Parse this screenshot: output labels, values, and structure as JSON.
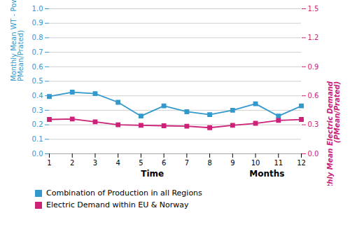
{
  "chart_data": {
    "type": "line",
    "x": [
      1,
      2,
      3,
      4,
      5,
      6,
      7,
      8,
      9,
      10,
      11,
      12
    ],
    "xlim": [
      1,
      12
    ],
    "xticks": [
      1,
      2,
      3,
      4,
      5,
      6,
      7,
      8,
      9,
      10,
      11,
      12
    ],
    "ylabel": "Monthly Mean WT - Power\nPMean/Prated)",
    "y2label": "Monthly Mean Electric Demand\n(PMean/Prated)",
    "ylim": [
      0,
      1
    ],
    "yticks": [
      {
        "value": 0,
        "label": "0.0"
      },
      0.1,
      0.2,
      0.3,
      0.4,
      0.5,
      0.6,
      0.7,
      0.8,
      0.9,
      {
        "value": 1,
        "label": "1.0"
      }
    ],
    "y2lim": [
      0,
      1.5
    ],
    "y2ticks": [
      {
        "value": 0,
        "label": "0.0"
      },
      0.3,
      0.6,
      0.9,
      1.2,
      1.5
    ],
    "series": [
      {
        "name": "Combination of Production in all Regions",
        "color": "#3399cc",
        "marker": "square",
        "values": [
          0.395,
          0.425,
          0.415,
          0.355,
          0.26,
          0.33,
          0.29,
          0.27,
          0.3,
          0.345,
          0.26,
          0.33
        ]
      },
      {
        "name": "Electric Demand within EU & Norway",
        "color": "#cc2277",
        "marker": "square",
        "axis": "y2",
        "values": [
          0.355,
          0.36,
          0.33,
          0.3,
          0.295,
          0.29,
          0.285,
          0.27,
          0.295,
          0.315,
          0.345,
          0.355
        ]
      }
    ],
    "annotations": [
      {
        "text": "Time",
        "x": 5.5
      },
      {
        "text": "Months",
        "x": 10.5
      }
    ],
    "grid": true,
    "legend": "bottom"
  }
}
